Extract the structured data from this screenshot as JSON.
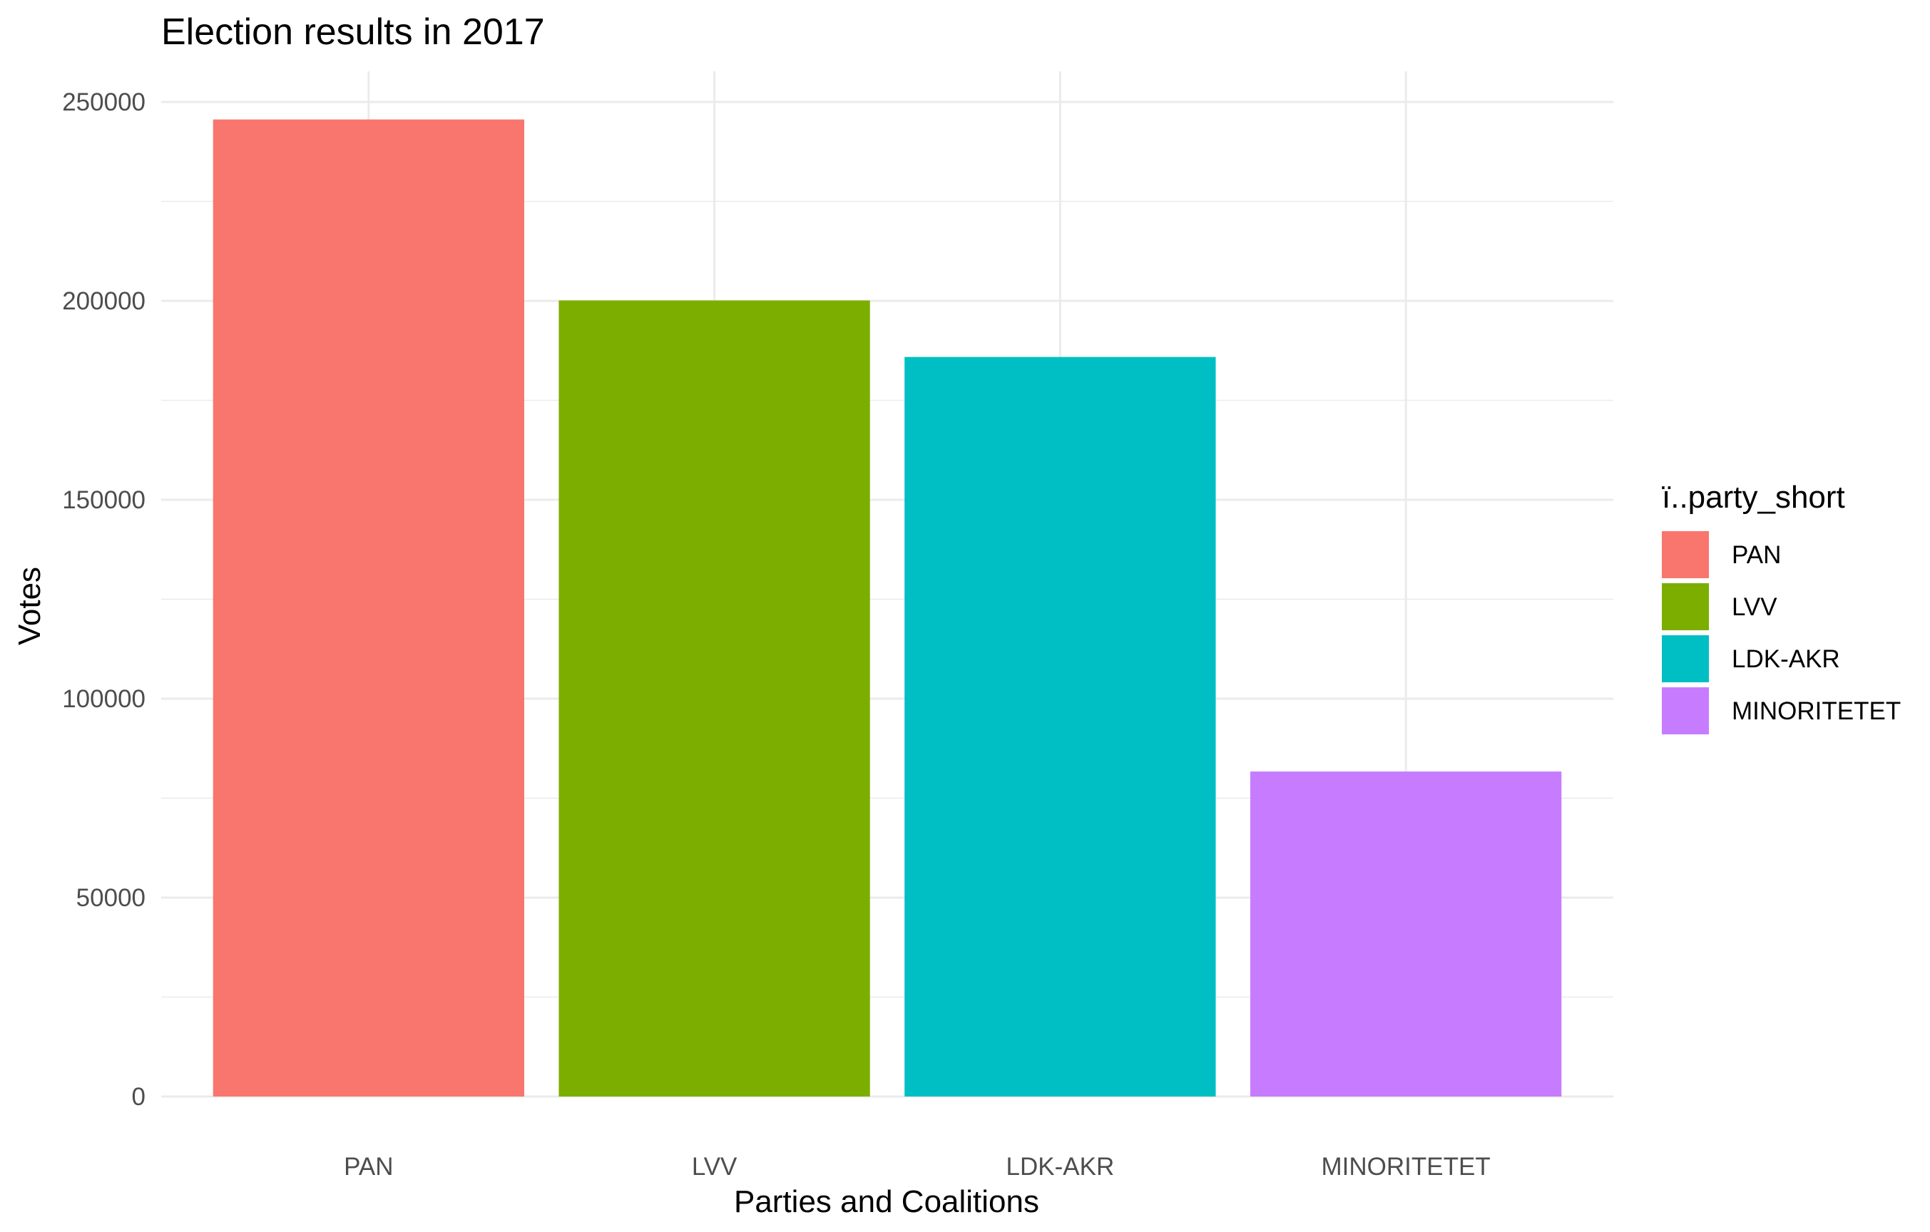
{
  "chart_data": {
    "type": "bar",
    "title": "Election results in 2017",
    "xlabel": "Parties and Coalitions",
    "ylabel": "Votes",
    "categories": [
      "PAN",
      "LVV",
      "LDK-AKR",
      "MINORITETET"
    ],
    "values": [
      245600,
      200100,
      185900,
      81700
    ],
    "ylim": [
      0,
      250000
    ],
    "y_ticks": [
      0,
      50000,
      100000,
      150000,
      200000,
      250000
    ],
    "y_tick_labels": [
      "0",
      "50000",
      "100000",
      "150000",
      "200000",
      "250000"
    ],
    "grid": true,
    "legend": {
      "title": "ï..party_short",
      "placement": "right",
      "entries": [
        "PAN",
        "LVV",
        "LDK-AKR",
        "MINORITETET"
      ]
    },
    "colors": [
      "#F8766D",
      "#7CAE00",
      "#00BFC4",
      "#C77CFF"
    ]
  }
}
